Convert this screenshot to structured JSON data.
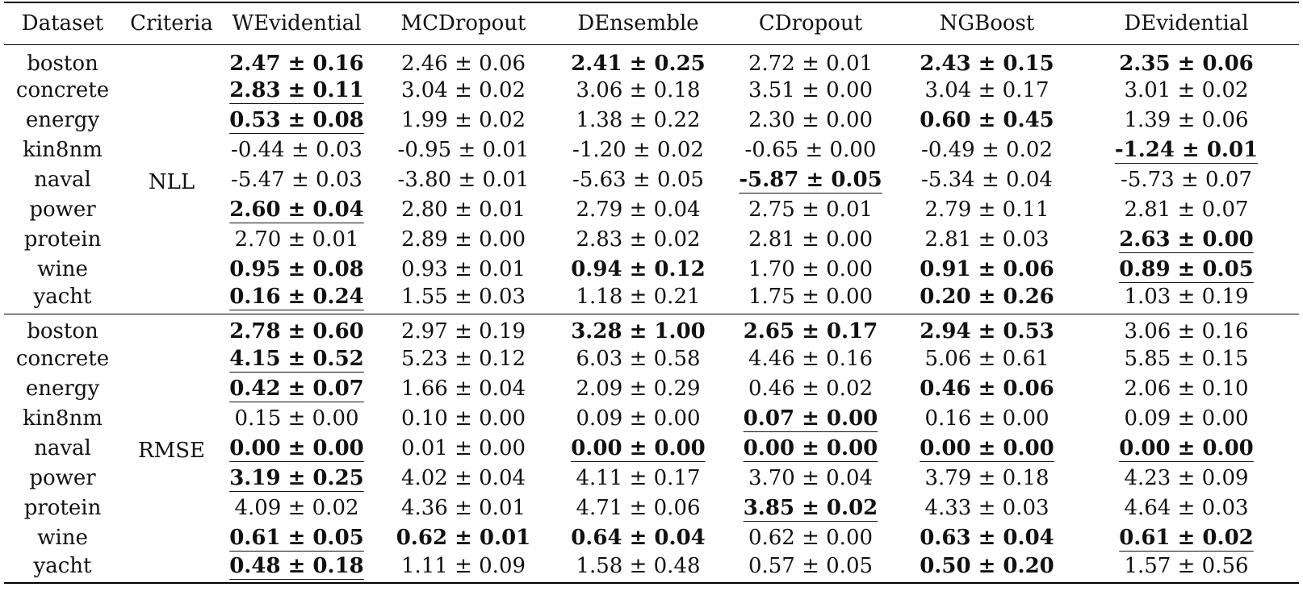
{
  "headers": [
    "Dataset",
    "Criteria",
    "WEvidential",
    "MCDropout",
    "DEnsemble",
    "CDropout",
    "NGBoost",
    "DEvidential"
  ],
  "groups": [
    {
      "criteria": "NLL",
      "rows": [
        {
          "dataset": "boston",
          "cells": [
            {
              "v": "2.47 ± 0.16",
              "b": true,
              "u": false
            },
            {
              "v": "2.46 ± 0.06",
              "b": false,
              "u": false
            },
            {
              "v": "2.41 ± 0.25",
              "b": true,
              "u": false
            },
            {
              "v": "2.72 ± 0.01",
              "b": false,
              "u": false
            },
            {
              "v": "2.43 ± 0.15",
              "b": true,
              "u": false
            },
            {
              "v": "2.35 ± 0.06",
              "b": true,
              "u": true
            }
          ]
        },
        {
          "dataset": "concrete",
          "cells": [
            {
              "v": "2.83 ± 0.11",
              "b": true,
              "u": true
            },
            {
              "v": "3.04 ± 0.02",
              "b": false,
              "u": false
            },
            {
              "v": "3.06 ± 0.18",
              "b": false,
              "u": false
            },
            {
              "v": "3.51 ± 0.00",
              "b": false,
              "u": false
            },
            {
              "v": "3.04 ± 0.17",
              "b": false,
              "u": false
            },
            {
              "v": "3.01 ± 0.02",
              "b": false,
              "u": false
            }
          ]
        },
        {
          "dataset": "energy",
          "cells": [
            {
              "v": "0.53 ± 0.08",
              "b": true,
              "u": true
            },
            {
              "v": "1.99 ± 0.02",
              "b": false,
              "u": false
            },
            {
              "v": "1.38 ± 0.22",
              "b": false,
              "u": false
            },
            {
              "v": "2.30 ± 0.00",
              "b": false,
              "u": false
            },
            {
              "v": "0.60 ± 0.45",
              "b": true,
              "u": false
            },
            {
              "v": "1.39 ± 0.06",
              "b": false,
              "u": false
            }
          ]
        },
        {
          "dataset": "kin8nm",
          "cells": [
            {
              "v": "-0.44 ± 0.03",
              "b": false,
              "u": false
            },
            {
              "v": "-0.95 ± 0.01",
              "b": false,
              "u": false
            },
            {
              "v": "-1.20 ± 0.02",
              "b": false,
              "u": false
            },
            {
              "v": "-0.65 ± 0.00",
              "b": false,
              "u": false
            },
            {
              "v": "-0.49 ± 0.02",
              "b": false,
              "u": false
            },
            {
              "v": "-1.24 ± 0.01",
              "b": true,
              "u": true
            }
          ]
        },
        {
          "dataset": "naval",
          "cells": [
            {
              "v": "-5.47 ± 0.03",
              "b": false,
              "u": false
            },
            {
              "v": "-3.80 ± 0.01",
              "b": false,
              "u": false
            },
            {
              "v": "-5.63 ± 0.05",
              "b": false,
              "u": false
            },
            {
              "v": "-5.87 ± 0.05",
              "b": true,
              "u": true
            },
            {
              "v": "-5.34 ± 0.04",
              "b": false,
              "u": false
            },
            {
              "v": "-5.73 ± 0.07",
              "b": false,
              "u": false
            }
          ]
        },
        {
          "dataset": "power",
          "cells": [
            {
              "v": "2.60 ± 0.04",
              "b": true,
              "u": true
            },
            {
              "v": "2.80 ± 0.01",
              "b": false,
              "u": false
            },
            {
              "v": "2.79 ± 0.04",
              "b": false,
              "u": false
            },
            {
              "v": "2.75 ± 0.01",
              "b": false,
              "u": false
            },
            {
              "v": "2.79 ± 0.11",
              "b": false,
              "u": false
            },
            {
              "v": "2.81 ± 0.07",
              "b": false,
              "u": false
            }
          ]
        },
        {
          "dataset": "protein",
          "cells": [
            {
              "v": "2.70 ± 0.01",
              "b": false,
              "u": false
            },
            {
              "v": "2.89 ± 0.00",
              "b": false,
              "u": false
            },
            {
              "v": "2.83 ± 0.02",
              "b": false,
              "u": false
            },
            {
              "v": "2.81 ± 0.00",
              "b": false,
              "u": false
            },
            {
              "v": "2.81 ± 0.03",
              "b": false,
              "u": false
            },
            {
              "v": "2.63 ± 0.00",
              "b": true,
              "u": true
            }
          ]
        },
        {
          "dataset": "wine",
          "cells": [
            {
              "v": "0.95 ± 0.08",
              "b": true,
              "u": false
            },
            {
              "v": "0.93 ± 0.01",
              "b": false,
              "u": false
            },
            {
              "v": "0.94 ± 0.12",
              "b": true,
              "u": false
            },
            {
              "v": "1.70 ± 0.00",
              "b": false,
              "u": false
            },
            {
              "v": "0.91 ± 0.06",
              "b": true,
              "u": false
            },
            {
              "v": "0.89 ± 0.05",
              "b": true,
              "u": true
            }
          ]
        },
        {
          "dataset": "yacht",
          "cells": [
            {
              "v": "0.16 ± 0.24",
              "b": true,
              "u": true
            },
            {
              "v": "1.55 ± 0.03",
              "b": false,
              "u": false
            },
            {
              "v": "1.18 ± 0.21",
              "b": false,
              "u": false
            },
            {
              "v": "1.75 ± 0.00",
              "b": false,
              "u": false
            },
            {
              "v": "0.20 ± 0.26",
              "b": true,
              "u": false
            },
            {
              "v": "1.03 ± 0.19",
              "b": false,
              "u": false
            }
          ]
        }
      ]
    },
    {
      "criteria": "RMSE",
      "rows": [
        {
          "dataset": "boston",
          "cells": [
            {
              "v": "2.78 ± 0.60",
              "b": true,
              "u": false
            },
            {
              "v": "2.97 ± 0.19",
              "b": false,
              "u": false
            },
            {
              "v": "3.28 ± 1.00",
              "b": true,
              "u": false
            },
            {
              "v": "2.65 ± 0.17",
              "b": true,
              "u": true
            },
            {
              "v": "2.94 ± 0.53",
              "b": true,
              "u": false
            },
            {
              "v": "3.06 ± 0.16",
              "b": false,
              "u": false
            }
          ]
        },
        {
          "dataset": "concrete",
          "cells": [
            {
              "v": "4.15 ± 0.52",
              "b": true,
              "u": true
            },
            {
              "v": "5.23 ± 0.12",
              "b": false,
              "u": false
            },
            {
              "v": "6.03 ± 0.58",
              "b": false,
              "u": false
            },
            {
              "v": "4.46 ± 0.16",
              "b": false,
              "u": false
            },
            {
              "v": "5.06 ± 0.61",
              "b": false,
              "u": false
            },
            {
              "v": "5.85 ± 0.15",
              "b": false,
              "u": false
            }
          ]
        },
        {
          "dataset": "energy",
          "cells": [
            {
              "v": "0.42 ± 0.07",
              "b": true,
              "u": true
            },
            {
              "v": "1.66 ± 0.04",
              "b": false,
              "u": false
            },
            {
              "v": "2.09 ± 0.29",
              "b": false,
              "u": false
            },
            {
              "v": "0.46 ± 0.02",
              "b": false,
              "u": false
            },
            {
              "v": "0.46 ± 0.06",
              "b": true,
              "u": false
            },
            {
              "v": "2.06 ± 0.10",
              "b": false,
              "u": false
            }
          ]
        },
        {
          "dataset": "kin8nm",
          "cells": [
            {
              "v": "0.15 ± 0.00",
              "b": false,
              "u": false
            },
            {
              "v": "0.10 ± 0.00",
              "b": false,
              "u": false
            },
            {
              "v": "0.09 ± 0.00",
              "b": false,
              "u": false
            },
            {
              "v": "0.07 ± 0.00",
              "b": true,
              "u": true
            },
            {
              "v": "0.16 ± 0.00",
              "b": false,
              "u": false
            },
            {
              "v": "0.09 ± 0.00",
              "b": false,
              "u": false
            }
          ]
        },
        {
          "dataset": "naval",
          "cells": [
            {
              "v": "0.00 ± 0.00",
              "b": true,
              "u": true
            },
            {
              "v": "0.01 ± 0.00",
              "b": false,
              "u": false
            },
            {
              "v": "0.00 ± 0.00",
              "b": true,
              "u": true
            },
            {
              "v": "0.00 ± 0.00",
              "b": true,
              "u": true
            },
            {
              "v": "0.00 ± 0.00",
              "b": true,
              "u": true
            },
            {
              "v": "0.00 ± 0.00",
              "b": true,
              "u": true
            }
          ]
        },
        {
          "dataset": "power",
          "cells": [
            {
              "v": "3.19 ± 0.25",
              "b": true,
              "u": true
            },
            {
              "v": "4.02 ± 0.04",
              "b": false,
              "u": false
            },
            {
              "v": "4.11 ± 0.17",
              "b": false,
              "u": false
            },
            {
              "v": "3.70 ± 0.04",
              "b": false,
              "u": false
            },
            {
              "v": "3.79 ± 0.18",
              "b": false,
              "u": false
            },
            {
              "v": "4.23 ± 0.09",
              "b": false,
              "u": false
            }
          ]
        },
        {
          "dataset": "protein",
          "cells": [
            {
              "v": "4.09 ± 0.02",
              "b": false,
              "u": false
            },
            {
              "v": "4.36 ± 0.01",
              "b": false,
              "u": false
            },
            {
              "v": "4.71 ± 0.06",
              "b": false,
              "u": false
            },
            {
              "v": "3.85 ± 0.02",
              "b": true,
              "u": true
            },
            {
              "v": "4.33 ± 0.03",
              "b": false,
              "u": false
            },
            {
              "v": "4.64 ± 0.03",
              "b": false,
              "u": false
            }
          ]
        },
        {
          "dataset": "wine",
          "cells": [
            {
              "v": "0.61 ± 0.05",
              "b": true,
              "u": true
            },
            {
              "v": "0.62 ± 0.01",
              "b": true,
              "u": false
            },
            {
              "v": "0.64 ± 0.04",
              "b": true,
              "u": false
            },
            {
              "v": "0.62 ± 0.00",
              "b": false,
              "u": false
            },
            {
              "v": "0.63 ± 0.04",
              "b": true,
              "u": false
            },
            {
              "v": "0.61 ± 0.02",
              "b": true,
              "u": true
            }
          ]
        },
        {
          "dataset": "yacht",
          "cells": [
            {
              "v": "0.48 ± 0.18",
              "b": true,
              "u": true
            },
            {
              "v": "1.11 ± 0.09",
              "b": false,
              "u": false
            },
            {
              "v": "1.58 ± 0.48",
              "b": false,
              "u": false
            },
            {
              "v": "0.57 ± 0.05",
              "b": false,
              "u": false
            },
            {
              "v": "0.50 ± 0.20",
              "b": true,
              "u": false
            },
            {
              "v": "1.57 ± 0.56",
              "b": false,
              "u": false
            }
          ]
        }
      ]
    }
  ]
}
